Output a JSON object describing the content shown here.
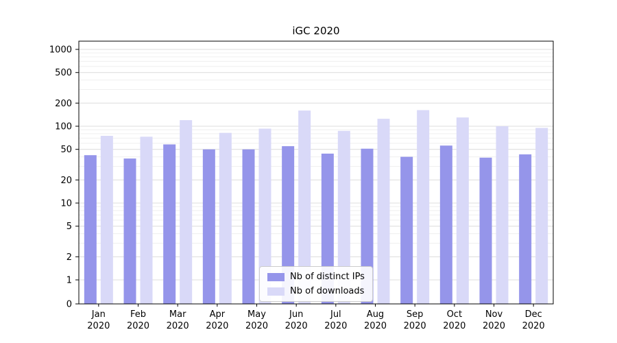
{
  "chart_data": {
    "type": "bar",
    "title": "iGC 2020",
    "categories": [
      "Jan",
      "Feb",
      "Mar",
      "Apr",
      "May",
      "Jun",
      "Jul",
      "Aug",
      "Sep",
      "Oct",
      "Nov",
      "Dec"
    ],
    "category_year": "2020",
    "series": [
      {
        "name": "Nb of distinct IPs",
        "color": "#9595ea",
        "values": [
          42,
          38,
          58,
          50,
          50,
          55,
          44,
          51,
          40,
          56,
          39,
          43
        ]
      },
      {
        "name": "Nb of downloads",
        "color": "#d9d9f8",
        "values": [
          75,
          73,
          120,
          82,
          93,
          160,
          87,
          125,
          162,
          130,
          100,
          95
        ]
      }
    ],
    "yscale": "symlog",
    "yticks": [
      0,
      1,
      2,
      5,
      10,
      20,
      50,
      100,
      200,
      500,
      1000
    ],
    "ylim": [
      0,
      1000
    ],
    "grid": true,
    "legend_position": "lower center",
    "colors": {
      "grid_major": "#dcdcdc",
      "grid_minor": "#efefef",
      "axis": "#000000",
      "background": "#ffffff"
    }
  }
}
